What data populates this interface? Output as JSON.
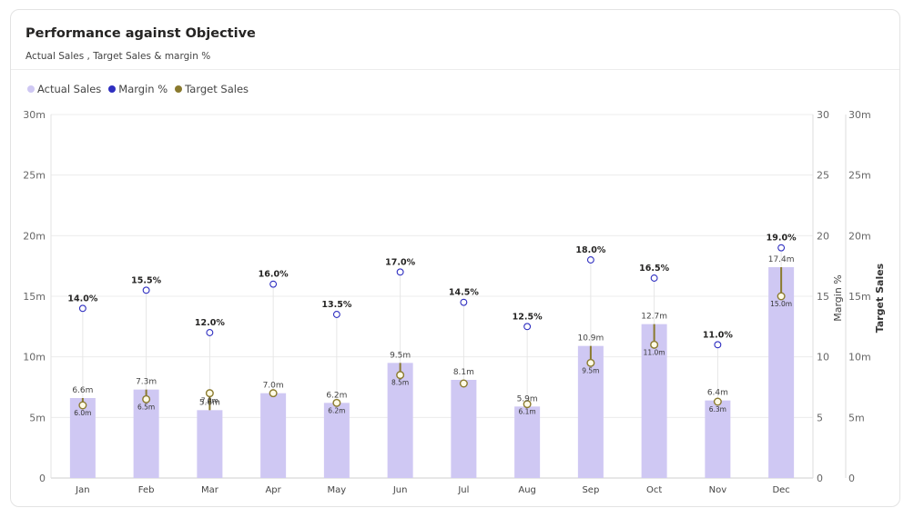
{
  "header": {
    "title": "Performance against Objective",
    "subtitle": "Actual Sales , Target Sales  & margin %"
  },
  "legend": [
    {
      "label": "Actual Sales",
      "color": "#cfc8f3"
    },
    {
      "label": "Margin %",
      "color": "#2f2fc0"
    },
    {
      "label": "Target Sales",
      "color": "#8a7a2e"
    }
  ],
  "chart_data": {
    "type": "bar",
    "categories": [
      "Jan",
      "Feb",
      "Mar",
      "Apr",
      "May",
      "Jun",
      "Jul",
      "Aug",
      "Sep",
      "Oct",
      "Nov",
      "Dec"
    ],
    "series": [
      {
        "name": "Actual Sales",
        "values": [
          6.6,
          7.3,
          5.6,
          7.0,
          6.2,
          9.5,
          8.1,
          5.9,
          10.9,
          12.7,
          6.4,
          17.4
        ],
        "labels": [
          "6.6m",
          "7.3m",
          "5.6m",
          "7.0m",
          "6.2m",
          "9.5m",
          "8.1m",
          "5.9m",
          "10.9m",
          "12.7m",
          "6.4m",
          "17.4m"
        ]
      },
      {
        "name": "Margin %",
        "values": [
          14.0,
          15.5,
          12.0,
          16.0,
          13.5,
          17.0,
          14.5,
          12.5,
          18.0,
          16.5,
          11.0,
          19.0
        ],
        "labels": [
          "14.0%",
          "15.5%",
          "12.0%",
          "16.0%",
          "13.5%",
          "17.0%",
          "14.5%",
          "12.5%",
          "18.0%",
          "16.5%",
          "11.0%",
          "19.0%"
        ]
      },
      {
        "name": "Target Sales",
        "values": [
          6.0,
          6.5,
          7.0,
          7.0,
          6.2,
          8.5,
          7.8,
          6.1,
          9.5,
          11.0,
          6.3,
          15.0
        ],
        "labels": [
          "6.0m",
          "6.5m",
          "7.0m",
          "",
          "6.2m",
          "8.5m",
          "",
          "6.1m",
          "9.5m",
          "11.0m",
          "6.3m",
          "15.0m"
        ]
      }
    ],
    "left_axis": {
      "ticks": [
        "0",
        "5m",
        "10m",
        "15m",
        "20m",
        "25m",
        "30m"
      ],
      "ylim": [
        0,
        30
      ]
    },
    "margin_axis": {
      "label": "Margin %",
      "ticks": [
        "0",
        "5",
        "10",
        "15",
        "20",
        "25",
        "30"
      ],
      "ylim": [
        0,
        30
      ]
    },
    "target_axis": {
      "label": "Target Sales",
      "ticks": [
        "0",
        "5m",
        "10m",
        "15m",
        "20m",
        "25m",
        "30m"
      ],
      "ylim": [
        0,
        30
      ]
    },
    "grid": true,
    "legend_position": "top-left"
  }
}
